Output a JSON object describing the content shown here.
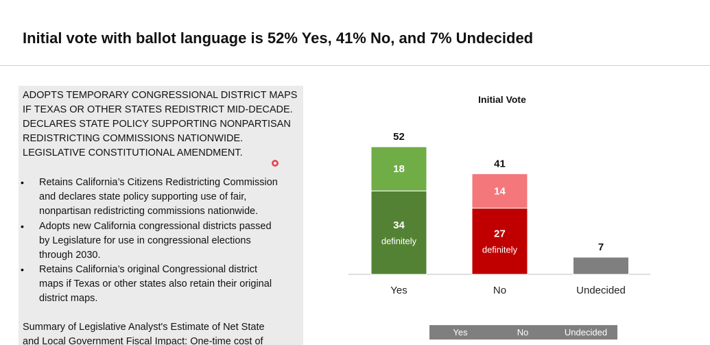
{
  "header": {
    "title": "Initial vote with ballot language is 52% Yes, 41% No, and 7% Undecided"
  },
  "ballot": {
    "summary_lines": [
      "ADOPTS TEMPORARY CONGRESSIONAL DISTRICT MAPS",
      "IF TEXAS OR OTHER STATES REDISTRICT MID-DECADE.",
      "DECLARES STATE POLICY SUPPORTING NONPARTISAN",
      "REDISTRICTING COMMISSIONS NATIONWIDE.",
      "LEGISLATIVE CONSTITUTIONAL AMENDMENT."
    ],
    "bullets": [
      [
        "Retains California’s Citizens Redistricting Commission",
        "and declares state policy supporting use of fair,",
        "nonpartisan redistricting commissions nationwide."
      ],
      [
        "Adopts new California congressional districts passed",
        "by Legislature for use in congressional elections",
        "through 2030."
      ],
      [
        "Retains California’s original Congressional district",
        "maps if Texas or other states also retain their original",
        "district maps."
      ]
    ],
    "fiscal_lines": [
      "Summary of Legislative Analyst's Estimate of Net State",
      "and Local Government Fiscal Impact: One-time cost of"
    ]
  },
  "chart_data": {
    "type": "stacked_bar",
    "title": "Initial Vote",
    "categories": [
      "Yes",
      "No",
      "Undecided"
    ],
    "series": [
      {
        "name": "definitely",
        "colors": [
          "#548235",
          "#c00000",
          null
        ],
        "values": [
          34,
          27,
          null
        ]
      },
      {
        "colors": [
          "#70ad47",
          "#f4777b",
          null
        ],
        "values": [
          18,
          14,
          null
        ]
      },
      {
        "colors": [
          null,
          null,
          "#7f7f7f"
        ],
        "values": [
          null,
          null,
          7
        ]
      }
    ],
    "totals": [
      52,
      41,
      7
    ]
  },
  "table": {
    "header": [
      "Yes",
      "No",
      "Undecided"
    ]
  }
}
